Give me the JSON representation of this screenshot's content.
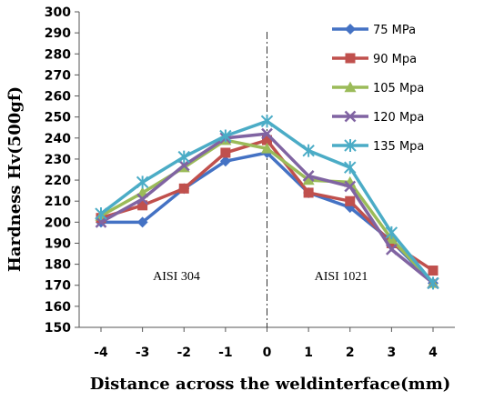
{
  "chart_data": {
    "type": "line",
    "xlabel": "Distance across the weldinterface(mm)",
    "ylabel": "Hardness Hv(500gf)",
    "x": [
      -4,
      -3,
      -2,
      -1,
      0,
      1,
      2,
      3,
      4
    ],
    "xlim": [
      -4,
      4
    ],
    "ylim": [
      150,
      300
    ],
    "ytick_step": 10,
    "grid": false,
    "legend_placement": "top-right",
    "divider_at_x": 0,
    "annotations": [
      {
        "text": "AISI 304",
        "x": -2,
        "y": 176
      },
      {
        "text": "AISI 1021",
        "x": 2,
        "y": 176
      }
    ],
    "series": [
      {
        "name": "75 MPa",
        "color": "#4472C4",
        "marker": "diamond",
        "values": [
          200,
          200,
          216,
          229,
          233,
          214,
          207,
          191,
          171
        ]
      },
      {
        "name": "90 Mpa",
        "color": "#C0504D",
        "marker": "square",
        "values": [
          202,
          208,
          216,
          233,
          239,
          214,
          210,
          190,
          177
        ]
      },
      {
        "name": "105 Mpa",
        "color": "#9BBB59",
        "marker": "triangle",
        "values": [
          203,
          214,
          226,
          239,
          235,
          220,
          219,
          192,
          171
        ]
      },
      {
        "name": "120 Mpa",
        "color": "#8064A2",
        "marker": "x",
        "values": [
          200,
          211,
          227,
          240,
          242,
          222,
          217,
          187,
          171
        ]
      },
      {
        "name": "135 Mpa",
        "color": "#4BACC6",
        "marker": "star",
        "values": [
          204,
          219,
          231,
          241,
          248,
          234,
          226,
          195,
          171
        ]
      }
    ]
  }
}
